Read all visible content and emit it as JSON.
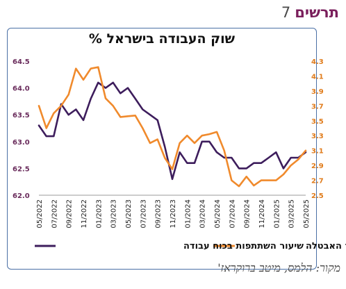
{
  "header": {
    "fig_word": "תרשים",
    "fig_number": "7"
  },
  "source": "מקור: הלמס, מיטב ברוקראז'",
  "chart_data": {
    "type": "line",
    "title": "שוק העבודה בישראל %",
    "categories": [
      "05/2022",
      "06/2022",
      "07/2022",
      "08/2022",
      "09/2022",
      "10/2022",
      "11/2022",
      "12/2022",
      "01/2023",
      "02/2023",
      "03/2023",
      "04/2023",
      "05/2023",
      "06/2023",
      "07/2023",
      "08/2023",
      "09/2023",
      "10/2023",
      "11/2023",
      "12/2023",
      "01/2024",
      "02/2024",
      "03/2024",
      "04/2024",
      "05/2024",
      "06/2024",
      "07/2024",
      "08/2024",
      "09/2024",
      "10/2024",
      "11/2024",
      "12/2024",
      "01/2025",
      "02/2025",
      "03/2025",
      "04/2025",
      "05/2025"
    ],
    "tick_labels": [
      "05/2022",
      "07/2022",
      "09/2022",
      "11/2022",
      "01/2023",
      "03/2023",
      "05/2023",
      "07/2023",
      "09/2023",
      "11/2023",
      "01/2024",
      "03/2024",
      "05/2024",
      "07/2024",
      "09/2024",
      "11/2024",
      "01/2025",
      "03/2025",
      "05/2025"
    ],
    "series": [
      {
        "name": "שיעור השתתפות בכוח עבודה",
        "axis": "left",
        "color": "#3d1d5c",
        "values": [
          63.3,
          63.1,
          63.1,
          63.7,
          63.5,
          63.6,
          63.4,
          63.8,
          64.1,
          64.0,
          64.1,
          63.9,
          64.0,
          63.8,
          63.6,
          63.5,
          63.4,
          62.9,
          62.3,
          62.8,
          62.6,
          62.6,
          63.0,
          63.0,
          62.8,
          62.7,
          62.7,
          62.5,
          62.5,
          62.6,
          62.6,
          62.7,
          62.8,
          62.5,
          62.7,
          62.7,
          62.8
        ]
      },
      {
        "name": "שיעור האבטלה",
        "axis": "right",
        "color": "#f08a2c",
        "values": [
          3.7,
          3.4,
          3.6,
          3.7,
          3.85,
          4.2,
          4.05,
          4.2,
          4.22,
          3.8,
          3.7,
          3.55,
          3.56,
          3.57,
          3.4,
          3.2,
          3.25,
          3.0,
          2.85,
          3.2,
          3.3,
          3.2,
          3.3,
          3.32,
          3.35,
          3.1,
          2.7,
          2.62,
          2.75,
          2.63,
          2.7,
          2.7,
          2.7,
          2.78,
          2.9,
          2.98,
          3.1
        ]
      }
    ],
    "yleft": {
      "range": [
        62.0,
        64.5
      ],
      "ticks": [
        "62.0",
        "62.5",
        "63.0",
        "63.5",
        "64.0",
        "64.5"
      ],
      "color": "#6a2c5c"
    },
    "yright": {
      "range": [
        2.5,
        4.3
      ],
      "ticks": [
        "2.5",
        "2.7",
        "2.9",
        "3.1",
        "3.3",
        "3.5",
        "3.7",
        "3.9",
        "4.1",
        "4.3"
      ],
      "color": "#e07b1a"
    },
    "grid": false,
    "legend_position": "bottom"
  }
}
